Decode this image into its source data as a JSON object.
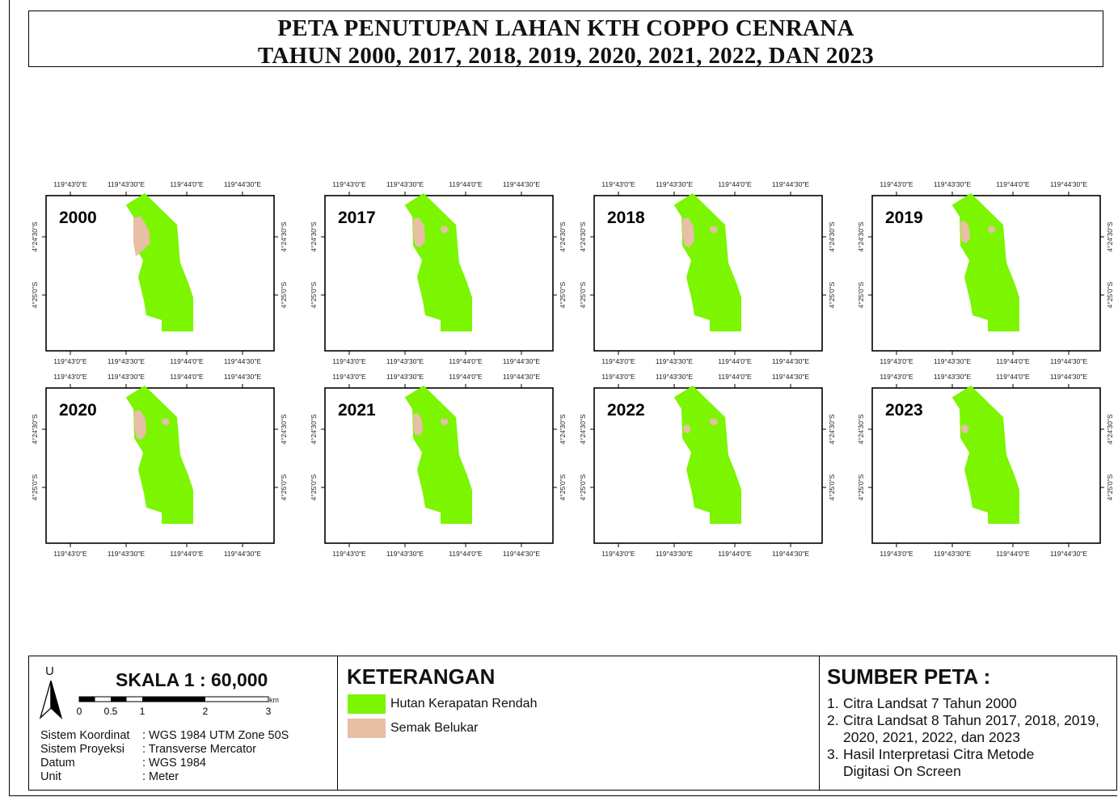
{
  "title": {
    "line1": "PETA PENUTUPAN LAHAN KTH COPPO CENRANA",
    "line2": "TAHUN 2000, 2017, 2018, 2019, 2020, 2021, 2022, DAN 2023"
  },
  "colors": {
    "hutan": "#7CF500",
    "semak": "#E6BFA5"
  },
  "axis": {
    "lon_ticks": [
      "119°43'0\"E",
      "119°43'30\"E",
      "119°44'0\"E",
      "119°44'30\"E"
    ],
    "lat_ticks": [
      "4°24'30\"S",
      "4°25'0\"S"
    ]
  },
  "maps": [
    {
      "year": "2000",
      "shrub_main": "large",
      "shrub_patch": false
    },
    {
      "year": "2017",
      "shrub_main": "medium",
      "shrub_patch": true
    },
    {
      "year": "2018",
      "shrub_main": "medium",
      "shrub_patch": true
    },
    {
      "year": "2019",
      "shrub_main": "small",
      "shrub_patch": true
    },
    {
      "year": "2020",
      "shrub_main": "medium",
      "shrub_patch": true
    },
    {
      "year": "2021",
      "shrub_main": "small",
      "shrub_patch": true
    },
    {
      "year": "2022",
      "shrub_main": "tiny",
      "shrub_patch": true
    },
    {
      "year": "2023",
      "shrub_main": "tiny",
      "shrub_patch": false
    }
  ],
  "scale": {
    "north_label": "U",
    "title": "SKALA  1 : 60,000",
    "ticks": [
      "0",
      "0.5",
      "1",
      "2",
      "3"
    ],
    "unit": "km"
  },
  "coord_info": [
    {
      "key": "Sistem Koordinat",
      "value": ": WGS 1984 UTM Zone 50S"
    },
    {
      "key": "Sistem Proyeksi",
      "value": ": Transverse Mercator"
    },
    {
      "key": "Datum",
      "value": ": WGS 1984"
    },
    {
      "key": "Unit",
      "value": ": Meter"
    }
  ],
  "legend": {
    "heading": "KETERANGAN",
    "items": [
      {
        "label": "Hutan Kerapatan Rendah",
        "color": "#7CF500"
      },
      {
        "label": "Semak Belukar",
        "color": "#E6BFA5"
      }
    ]
  },
  "sources": {
    "heading": "SUMBER PETA :",
    "items": [
      {
        "num": "1.",
        "lines": [
          "Citra Landsat 7 Tahun 2000"
        ]
      },
      {
        "num": "2.",
        "lines": [
          "Citra Landsat 8 Tahun 2017, 2018, 2019,",
          "2020, 2021, 2022, dan 2023"
        ]
      },
      {
        "num": "3.",
        "lines": [
          "Hasil Interpretasi Citra Metode",
          "Digitasi On Screen"
        ]
      }
    ]
  }
}
